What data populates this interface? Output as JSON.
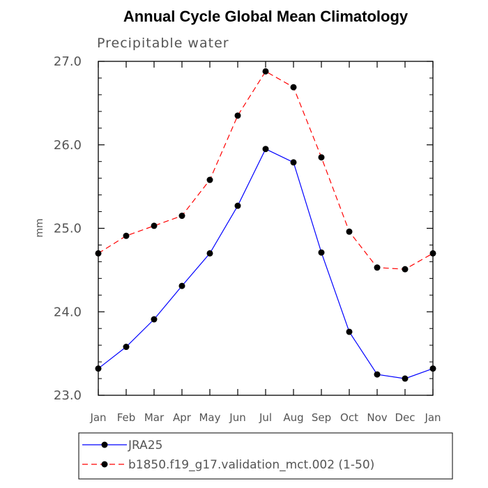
{
  "chart_data": {
    "type": "line",
    "title": "Annual Cycle Global Mean Climatology",
    "subtitle": "Precipitable water",
    "xlabel": "",
    "ylabel": "mm",
    "categories": [
      "Jan",
      "Feb",
      "Mar",
      "Apr",
      "May",
      "Jun",
      "Jul",
      "Aug",
      "Sep",
      "Oct",
      "Nov",
      "Dec",
      "Jan"
    ],
    "ylim": [
      23.0,
      27.0
    ],
    "yticks": [
      "23.0",
      "24.0",
      "25.0",
      "26.0",
      "27.0"
    ],
    "grid": false,
    "legend": "bottom",
    "series": [
      {
        "name": "JRA25",
        "color": "#0000ff",
        "dash": "solid",
        "values": [
          23.32,
          23.58,
          23.91,
          24.31,
          24.7,
          25.27,
          25.95,
          25.79,
          24.71,
          23.76,
          23.25,
          23.2,
          23.32
        ]
      },
      {
        "name": "b1850.f19_g17.validation_mct.002 (1-50)",
        "color": "#ff0000",
        "dash": "dashed",
        "values": [
          24.7,
          24.91,
          25.03,
          25.15,
          25.58,
          26.35,
          26.88,
          26.69,
          25.85,
          24.96,
          24.53,
          24.51,
          24.7
        ]
      }
    ]
  }
}
